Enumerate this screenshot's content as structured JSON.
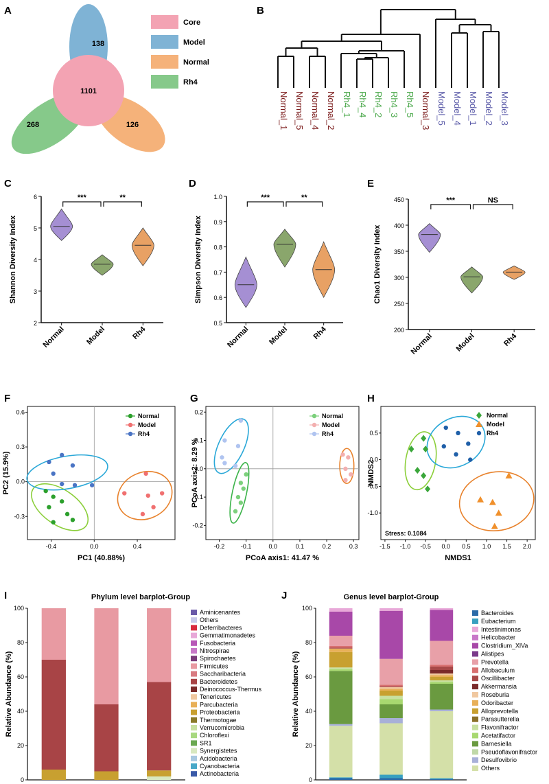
{
  "chart_data": [
    {
      "id": "A",
      "type": "venn",
      "label": "A",
      "sets": [
        {
          "name": "Core",
          "value": 1101,
          "color": "#f3a3b3"
        },
        {
          "name": "Model",
          "value": 138,
          "color": "#7fb3d5"
        },
        {
          "name": "Normal",
          "value": 126,
          "color": "#f5b27a"
        },
        {
          "name": "Rh4",
          "value": 268,
          "color": "#86c98a"
        }
      ]
    },
    {
      "id": "B",
      "type": "dendrogram",
      "label": "B",
      "leaves": [
        {
          "name": "Normal_1",
          "group": "Normal"
        },
        {
          "name": "Normal_5",
          "group": "Normal"
        },
        {
          "name": "Normal_4",
          "group": "Normal"
        },
        {
          "name": "Normal_2",
          "group": "Normal"
        },
        {
          "name": "Rh4_1",
          "group": "Rh4"
        },
        {
          "name": "Rh4_4",
          "group": "Rh4"
        },
        {
          "name": "Rh4_2",
          "group": "Rh4"
        },
        {
          "name": "Rh4_3",
          "group": "Rh4"
        },
        {
          "name": "Rh4_5",
          "group": "Rh4"
        },
        {
          "name": "Normal_3",
          "group": "Normal"
        },
        {
          "name": "Model_5",
          "group": "Model"
        },
        {
          "name": "Model_4",
          "group": "Model"
        },
        {
          "name": "Model_1",
          "group": "Model"
        },
        {
          "name": "Model_2",
          "group": "Model"
        },
        {
          "name": "Model_3",
          "group": "Model"
        }
      ],
      "group_colors": {
        "Normal": "#7a1a1a",
        "Rh4": "#4aa84a",
        "Model": "#5a5aa8"
      }
    },
    {
      "id": "C",
      "type": "violin",
      "label": "C",
      "ylabel": "Shannon Diversity Index",
      "ylim": [
        2,
        6
      ],
      "yticks": [
        2,
        3,
        4,
        5,
        6
      ],
      "categories": [
        "Normal",
        "Model",
        "Rh4"
      ],
      "medians": [
        5.05,
        3.85,
        4.45
      ],
      "ranges": [
        [
          4.6,
          5.6
        ],
        [
          3.5,
          4.15
        ],
        [
          3.8,
          5.0
        ]
      ],
      "colors": [
        "#a58fd3",
        "#8aa66c",
        "#e8a164"
      ],
      "sig": [
        {
          "from": 0,
          "to": 1,
          "text": "***"
        },
        {
          "from": 1,
          "to": 2,
          "text": "**"
        }
      ]
    },
    {
      "id": "D",
      "type": "violin",
      "label": "D",
      "ylabel": "Simpson Diversity Index",
      "ylim": [
        0.5,
        1.0
      ],
      "yticks": [
        0.5,
        0.6,
        0.7,
        0.8,
        0.9,
        1.0
      ],
      "categories": [
        "Normal",
        "Model",
        "Rh4"
      ],
      "medians": [
        0.65,
        0.81,
        0.71
      ],
      "ranges": [
        [
          0.56,
          0.76
        ],
        [
          0.72,
          0.87
        ],
        [
          0.6,
          0.82
        ]
      ],
      "colors": [
        "#a58fd3",
        "#8aa66c",
        "#e8a164"
      ],
      "sig": [
        {
          "from": 0,
          "to": 1,
          "text": "***"
        },
        {
          "from": 1,
          "to": 2,
          "text": "**"
        }
      ]
    },
    {
      "id": "E",
      "type": "violin",
      "label": "E",
      "ylabel": "Chao1 Diversity Index",
      "ylim": [
        200,
        450
      ],
      "yticks": [
        200,
        250,
        300,
        350,
        400,
        450
      ],
      "categories": [
        "Normal",
        "Model",
        "Rh4"
      ],
      "medians": [
        382,
        301,
        310
      ],
      "ranges": [
        [
          348,
          403
        ],
        [
          270,
          320
        ],
        [
          296,
          322
        ]
      ],
      "colors": [
        "#a58fd3",
        "#8aa66c",
        "#e8a164"
      ],
      "sig": [
        {
          "from": 0,
          "to": 1,
          "text": "***"
        },
        {
          "from": 1,
          "to": 2,
          "text": "NS"
        }
      ]
    },
    {
      "id": "F",
      "type": "scatter",
      "label": "F",
      "xlabel": "PC1 (40.88%)",
      "ylabel": "PC2 (15.9%)",
      "xlim": [
        -0.62,
        0.75
      ],
      "ylim": [
        -0.5,
        0.65
      ],
      "xticks": [
        -0.4,
        0.0,
        0.4
      ],
      "yticks": [
        -0.3,
        0.0,
        0.3,
        0.6
      ],
      "series": [
        {
          "name": "Normal",
          "color": "#2ca02c",
          "points": [
            [
              -0.45,
              -0.08
            ],
            [
              -0.38,
              -0.13
            ],
            [
              -0.3,
              -0.17
            ],
            [
              -0.42,
              -0.22
            ],
            [
              -0.25,
              -0.28
            ],
            [
              -0.38,
              -0.35
            ],
            [
              -0.2,
              -0.33
            ]
          ]
        },
        {
          "name": "Model",
          "color": "#f07070",
          "points": [
            [
              0.28,
              -0.1
            ],
            [
              0.48,
              0.07
            ],
            [
              0.63,
              -0.1
            ],
            [
              0.5,
              -0.12
            ],
            [
              0.55,
              -0.22
            ],
            [
              0.45,
              -0.28
            ]
          ]
        },
        {
          "name": "Rh4",
          "color": "#4a74c4",
          "points": [
            [
              -0.42,
              0.17
            ],
            [
              -0.3,
              0.23
            ],
            [
              -0.2,
              0.14
            ],
            [
              -0.38,
              0.07
            ],
            [
              -0.3,
              -0.02
            ],
            [
              -0.18,
              -0.03
            ],
            [
              -0.02,
              -0.03
            ]
          ]
        }
      ],
      "ellipses": [
        {
          "group": "Normal",
          "color": "#8ccf3b",
          "cx": -0.32,
          "cy": -0.22,
          "rx": 0.3,
          "ry": 0.15,
          "angle": 35
        },
        {
          "group": "Model",
          "color": "#e8822c",
          "cx": 0.47,
          "cy": -0.12,
          "rx": 0.26,
          "ry": 0.2,
          "angle": -25
        },
        {
          "group": "Rh4",
          "color": "#2aa8d8",
          "cx": -0.25,
          "cy": 0.08,
          "rx": 0.38,
          "ry": 0.14,
          "angle": -10
        }
      ]
    },
    {
      "id": "G",
      "type": "scatter",
      "label": "G",
      "xlabel": "PCoA axis1:  41.47 %",
      "ylabel": "PCoA axis2:  8.29 %",
      "xlim": [
        -0.25,
        0.32
      ],
      "ylim": [
        -0.25,
        0.22
      ],
      "xticks": [
        -0.2,
        -0.1,
        0.0,
        0.1,
        0.2,
        0.3
      ],
      "yticks": [
        -0.2,
        -0.1,
        0.0,
        0.1,
        0.2
      ],
      "series": [
        {
          "name": "Normal",
          "color": "#7cd07c",
          "points": [
            [
              -0.1,
              -0.02
            ],
            [
              -0.12,
              -0.05
            ],
            [
              -0.11,
              -0.07
            ],
            [
              -0.13,
              -0.1
            ],
            [
              -0.12,
              -0.12
            ],
            [
              -0.14,
              -0.15
            ]
          ]
        },
        {
          "name": "Model",
          "color": "#f3b0b0",
          "points": [
            [
              0.26,
              0.05
            ],
            [
              0.28,
              0.04
            ],
            [
              0.27,
              0.0
            ],
            [
              0.29,
              -0.02
            ],
            [
              0.27,
              -0.04
            ]
          ]
        },
        {
          "name": "Rh4",
          "color": "#b0c4f0",
          "points": [
            [
              -0.12,
              0.17
            ],
            [
              -0.18,
              0.1
            ],
            [
              -0.13,
              0.08
            ],
            [
              -0.19,
              0.04
            ],
            [
              -0.18,
              0.02
            ],
            [
              -0.14,
              0.01
            ]
          ]
        }
      ],
      "ellipses": [
        {
          "group": "Normal",
          "color": "#3cb34a",
          "cx": -0.125,
          "cy": -0.085,
          "rx": 0.115,
          "ry": 0.025,
          "angle": -78
        },
        {
          "group": "Model",
          "color": "#e8822c",
          "cx": 0.275,
          "cy": 0.01,
          "rx": 0.065,
          "ry": 0.025,
          "angle": -90
        },
        {
          "group": "Rh4",
          "color": "#2aa8d8",
          "cx": -0.155,
          "cy": 0.08,
          "rx": 0.11,
          "ry": 0.045,
          "angle": -65
        }
      ]
    },
    {
      "id": "H",
      "type": "scatter",
      "label": "H",
      "xlabel": "NMDS1",
      "ylabel": "NMDS2",
      "xlim": [
        -1.6,
        2.2
      ],
      "ylim": [
        -1.5,
        1.0
      ],
      "xticks": [
        -1.5,
        -1.0,
        -0.5,
        0.0,
        0.5,
        1.0,
        1.5,
        2.0
      ],
      "yticks": [
        -1.0,
        -0.5,
        0.0,
        0.5
      ],
      "annotation": "Stress: 0.1084",
      "series": [
        {
          "name": "Normal",
          "color": "#3aa63a",
          "marker": "diamond",
          "points": [
            [
              -0.55,
              0.4
            ],
            [
              -0.85,
              0.2
            ],
            [
              -0.5,
              0.2
            ],
            [
              -0.7,
              -0.2
            ],
            [
              -0.55,
              -0.3
            ],
            [
              -0.45,
              -0.55
            ]
          ]
        },
        {
          "name": "Model",
          "color": "#f0902c",
          "marker": "triangle",
          "points": [
            [
              1.55,
              -0.3
            ],
            [
              0.85,
              -0.75
            ],
            [
              1.15,
              -0.8
            ],
            [
              1.3,
              -1.0
            ],
            [
              1.2,
              -1.25
            ]
          ]
        },
        {
          "name": "Rh4",
          "color": "#1f5fa8",
          "marker": "circle",
          "points": [
            [
              0.0,
              0.6
            ],
            [
              0.3,
              0.5
            ],
            [
              -0.05,
              0.25
            ],
            [
              0.55,
              0.3
            ],
            [
              0.25,
              0.1
            ],
            [
              0.6,
              0.0
            ]
          ]
        }
      ],
      "ellipses": [
        {
          "group": "Normal",
          "color": "#8ccf3b",
          "cx": -0.62,
          "cy": -0.02,
          "rx": 0.72,
          "ry": 0.28,
          "angle": -80
        },
        {
          "group": "Model",
          "color": "#e8822c",
          "cx": 1.25,
          "cy": -0.78,
          "rx": 0.92,
          "ry": 0.55,
          "angle": -10
        },
        {
          "group": "Rh4",
          "color": "#2aa8d8",
          "cx": 0.25,
          "cy": 0.33,
          "rx": 0.75,
          "ry": 0.45,
          "angle": -30
        }
      ]
    },
    {
      "id": "I",
      "type": "stacked_bar",
      "label": "I",
      "title": "Phylum level barplot-Group",
      "ylabel": "Relative  Abundance (%)",
      "ylim": [
        0,
        100
      ],
      "yticks": [
        0,
        20,
        40,
        60,
        80,
        100
      ],
      "categories": [
        "Normal",
        "Model",
        "Rh4"
      ],
      "legend": [
        {
          "name": "Aminicenantes",
          "color": "#6a5aa8"
        },
        {
          "name": "Others",
          "color": "#c8c8e8"
        },
        {
          "name": "Deferribacteres",
          "color": "#d8283c"
        },
        {
          "name": "Gemmatimonadetes",
          "color": "#e8a8d8"
        },
        {
          "name": "Fusobacteria",
          "color": "#b858b8"
        },
        {
          "name": "Nitrospirae",
          "color": "#c878c8"
        },
        {
          "name": "Spirochaetes",
          "color": "#7a3a7a"
        },
        {
          "name": "Firmicutes",
          "color": "#e89aa2"
        },
        {
          "name": "Saccharibacteria",
          "color": "#d87a80"
        },
        {
          "name": "Bacteroidetes",
          "color": "#a84446"
        },
        {
          "name": "Deinococcus-Thermus",
          "color": "#7a2a2a"
        },
        {
          "name": "Tenericutes",
          "color": "#f0c8a0"
        },
        {
          "name": "Parcubacteria",
          "color": "#e8b058"
        },
        {
          "name": "Proteobacteria",
          "color": "#c8a030"
        },
        {
          "name": "Thermotogae",
          "color": "#8a7a28"
        },
        {
          "name": "Verrucomicrobia",
          "color": "#c8e0a0"
        },
        {
          "name": "Chloroflexi",
          "color": "#a8d880"
        },
        {
          "name": "SR1",
          "color": "#6aa850"
        },
        {
          "name": "Synergistetes",
          "color": "#d8e8c0"
        },
        {
          "name": "Acidobacteria",
          "color": "#a8c8e0"
        },
        {
          "name": "Cyanobacteria",
          "color": "#48a8c8"
        },
        {
          "name": "Actinobacteria",
          "color": "#3a5aa8"
        }
      ],
      "series": [
        {
          "name": "Synergistetes",
          "values": [
            0,
            0,
            2
          ]
        },
        {
          "name": "Proteobacteria",
          "values": [
            6,
            5,
            3.5
          ]
        },
        {
          "name": "Bacteroidetes",
          "values": [
            64,
            39,
            51.5
          ]
        },
        {
          "name": "Firmicutes",
          "values": [
            30,
            56,
            43
          ]
        }
      ]
    },
    {
      "id": "J",
      "type": "stacked_bar",
      "label": "J",
      "title": "Genus level barplot-Group",
      "ylabel": "Relative  Abundance (%)",
      "ylim": [
        0,
        100
      ],
      "yticks": [
        0,
        20,
        40,
        60,
        80,
        100
      ],
      "categories": [
        "Normal",
        "Model",
        "Rh4"
      ],
      "legend": [
        {
          "name": "Bacteroides",
          "color": "#2a6aa8"
        },
        {
          "name": "Eubacterium",
          "color": "#38a0c0"
        },
        {
          "name": "Intestinimonas",
          "color": "#e8a8d8"
        },
        {
          "name": "Helicobacter",
          "color": "#c878c8"
        },
        {
          "name": "Clostridium_XlVa",
          "color": "#a848a8"
        },
        {
          "name": "Alistipes",
          "color": "#7a3a8a"
        },
        {
          "name": "Prevotella",
          "color": "#e8a0a8"
        },
        {
          "name": "Allobaculum",
          "color": "#d87070"
        },
        {
          "name": "Oscillibacter",
          "color": "#a84848"
        },
        {
          "name": "Akkermansia",
          "color": "#7a2a2a"
        },
        {
          "name": "Roseburia",
          "color": "#f0c8a0"
        },
        {
          "name": "Odoribacter",
          "color": "#e8b058"
        },
        {
          "name": "Alloprevotella",
          "color": "#c8a030"
        },
        {
          "name": "Parasutterella",
          "color": "#8a7028"
        },
        {
          "name": "Flavonifractor",
          "color": "#c8e0a0"
        },
        {
          "name": "Acetatifactor",
          "color": "#a8d870"
        },
        {
          "name": "Barnesiella",
          "color": "#6a9a40"
        },
        {
          "name": "Pseudoflavonifractor",
          "color": "#c0d8a8"
        },
        {
          "name": "Desulfovibrio",
          "color": "#a8b0d8"
        },
        {
          "name": "Others",
          "color": "#d4e0a8"
        }
      ],
      "series": [
        {
          "name": "Bacteroides",
          "values": [
            1,
            1,
            0.5
          ]
        },
        {
          "name": "Eubacterium",
          "values": [
            0.5,
            2,
            0.5
          ]
        },
        {
          "name": "Others",
          "values": [
            30,
            30,
            39
          ]
        },
        {
          "name": "Desulfovibrio",
          "values": [
            1,
            3,
            1
          ]
        },
        {
          "name": "Barnesiella",
          "values": [
            31,
            8,
            15
          ]
        },
        {
          "name": "Acetatifactor",
          "values": [
            1,
            3,
            1
          ]
        },
        {
          "name": "Flavonifractor",
          "values": [
            1,
            2,
            1
          ]
        },
        {
          "name": "Alloprevotella",
          "values": [
            9,
            3,
            2
          ]
        },
        {
          "name": "Odoribacter",
          "values": [
            2,
            1,
            1
          ]
        },
        {
          "name": "Roseburia",
          "values": [
            0,
            1,
            1
          ]
        },
        {
          "name": "Akkermansia",
          "values": [
            0,
            0,
            2
          ]
        },
        {
          "name": "Oscillibacter",
          "values": [
            0.5,
            0.5,
            2
          ]
        },
        {
          "name": "Allobaculum",
          "values": [
            1,
            1,
            1
          ]
        },
        {
          "name": "Prevotella",
          "values": [
            6,
            15,
            14
          ]
        },
        {
          "name": "Clostridium_XlVa",
          "values": [
            14,
            28,
            18
          ]
        },
        {
          "name": "Intestinimonas",
          "values": [
            2,
            1.5,
            1
          ]
        }
      ]
    }
  ]
}
